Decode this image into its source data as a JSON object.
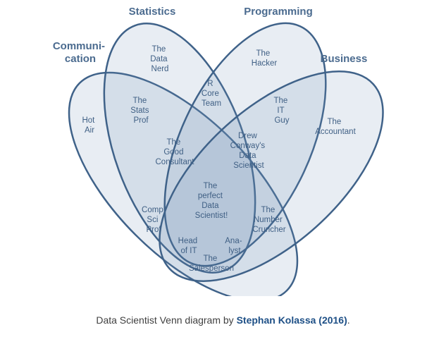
{
  "diagram": {
    "sets": [
      {
        "key": "communication",
        "label_lines": [
          "Communi-",
          "cation"
        ]
      },
      {
        "key": "statistics",
        "label_lines": [
          "Statistics"
        ]
      },
      {
        "key": "programming",
        "label_lines": [
          "Programming"
        ]
      },
      {
        "key": "business",
        "label_lines": [
          "Business"
        ]
      }
    ],
    "regions": [
      {
        "key": "data-nerd",
        "lines": [
          "The",
          "Data",
          "Nerd"
        ]
      },
      {
        "key": "hacker",
        "lines": [
          "The",
          "Hacker"
        ]
      },
      {
        "key": "hot-air",
        "lines": [
          "Hot",
          "Air"
        ]
      },
      {
        "key": "accountant",
        "lines": [
          "The",
          "Accountant"
        ]
      },
      {
        "key": "r-core-team",
        "lines": [
          "R",
          "Core",
          "Team"
        ]
      },
      {
        "key": "stats-prof",
        "lines": [
          "The",
          "Stats",
          "Prof"
        ]
      },
      {
        "key": "it-guy",
        "lines": [
          "The",
          "IT",
          "Guy"
        ]
      },
      {
        "key": "good-consultant",
        "lines": [
          "The",
          "Good",
          "Consultant"
        ]
      },
      {
        "key": "drew-conway",
        "lines": [
          "Drew",
          "Conway's",
          "Data",
          "Scientist"
        ]
      },
      {
        "key": "perfect-data-scientist",
        "lines": [
          "The",
          "perfect",
          "Data",
          "Scientist!"
        ]
      },
      {
        "key": "comp-sci-prof",
        "lines": [
          "Comp",
          "Sci",
          "Prof"
        ]
      },
      {
        "key": "number-cruncher",
        "lines": [
          "The",
          "Number",
          "Cruncher"
        ]
      },
      {
        "key": "head-of-it",
        "lines": [
          "Head",
          "of IT"
        ]
      },
      {
        "key": "analyst",
        "lines": [
          "Ana-",
          "lyst"
        ]
      },
      {
        "key": "salesperson",
        "lines": [
          "The",
          "Salesperson"
        ]
      }
    ]
  },
  "caption": {
    "prefix": "Data Scientist Venn diagram by ",
    "author": "Stephan Kolassa (2016)",
    "suffix": "."
  }
}
